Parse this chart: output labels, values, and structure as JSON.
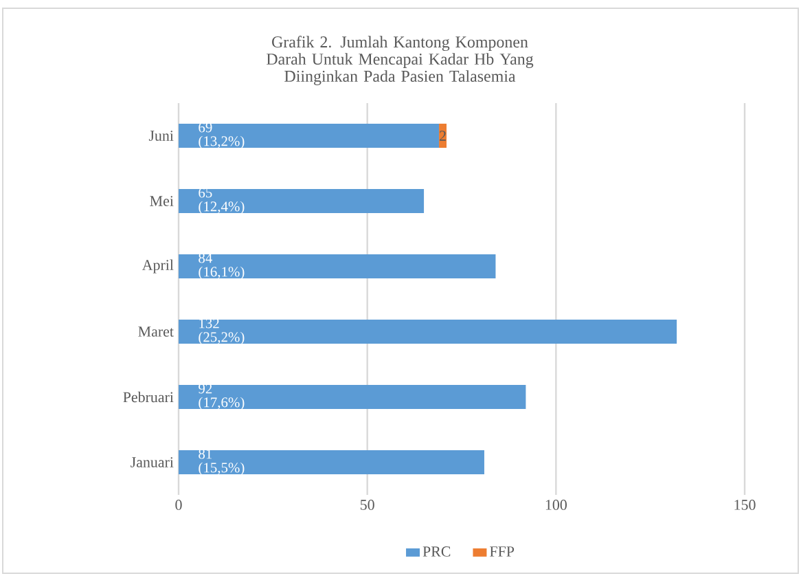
{
  "chart_data": {
    "type": "bar",
    "orientation": "horizontal",
    "stacked": true,
    "title": "Grafik 2. Jumlah  Kantong Komponen Darah Untuk Mencapai Kadar Hb Yang Diinginkan Pada Pasien Talasemia",
    "categories": [
      "Juni",
      "Mei",
      "April",
      "Maret",
      "Pebruari",
      "Januari"
    ],
    "series": [
      {
        "name": "PRC",
        "color": "#5b9bd5",
        "values": [
          69,
          65,
          84,
          132,
          92,
          81
        ],
        "value_labels": [
          "69 (13,2%)",
          "65 (12,4%)",
          "84 (16,1%)",
          "132 (25,2%)",
          "92 (17,6%)",
          "81 (15,5%)"
        ]
      },
      {
        "name": "FFP",
        "color": "#ed7d31",
        "values": [
          2,
          null,
          null,
          null,
          null,
          null
        ],
        "value_labels": [
          "2",
          null,
          null,
          null,
          null,
          null
        ]
      }
    ],
    "xlim": [
      0,
      150
    ],
    "xticks": [
      0,
      50,
      100,
      150
    ],
    "grid": "x",
    "legend": "bottom"
  }
}
